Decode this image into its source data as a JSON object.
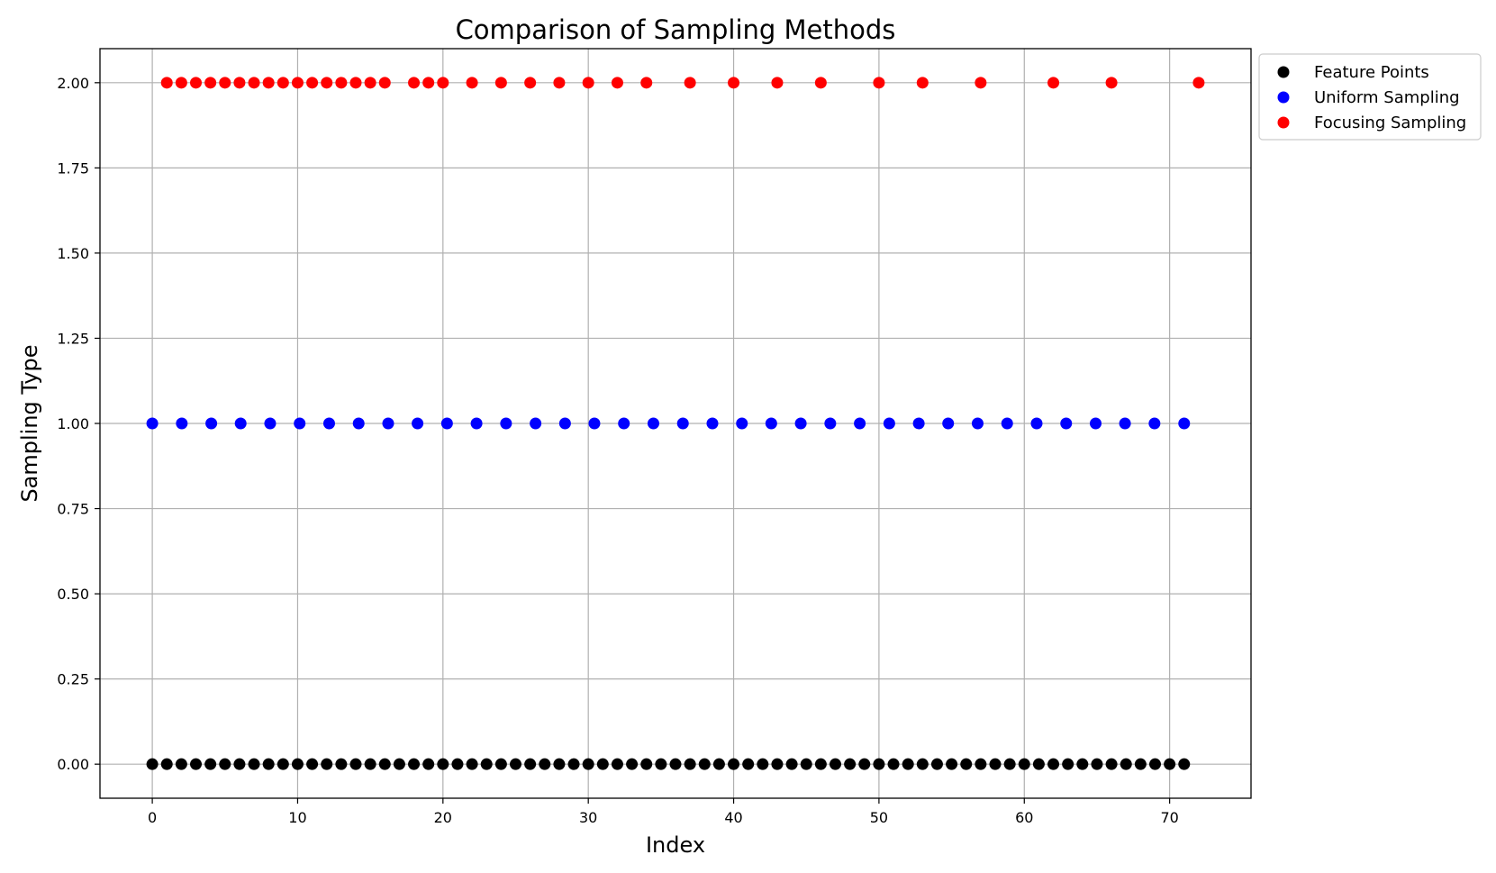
{
  "chart_data": {
    "type": "scatter",
    "title": "Comparison of Sampling Methods",
    "xlabel": "Index",
    "ylabel": "Sampling Type",
    "xlim": [
      -3.6,
      75.6
    ],
    "ylim": [
      -0.1,
      2.1
    ],
    "x_ticks": [
      0,
      10,
      20,
      30,
      40,
      50,
      60,
      70
    ],
    "y_ticks": [
      0,
      0.25,
      0.5,
      0.75,
      1.0,
      1.25,
      1.5,
      1.75,
      2.0
    ],
    "y_tick_labels": [
      "0.00",
      "0.25",
      "0.50",
      "0.75",
      "1.00",
      "1.25",
      "1.50",
      "1.75",
      "2.00"
    ],
    "grid": true,
    "legend_position": "outside-top-right",
    "series": [
      {
        "name": "Feature Points",
        "color": "#000000",
        "y": 0,
        "x": [
          0,
          1,
          2,
          3,
          4,
          5,
          6,
          7,
          8,
          9,
          10,
          11,
          12,
          13,
          14,
          15,
          16,
          17,
          18,
          19,
          20,
          21,
          22,
          23,
          24,
          25,
          26,
          27,
          28,
          29,
          30,
          31,
          32,
          33,
          34,
          35,
          36,
          37,
          38,
          39,
          40,
          41,
          42,
          43,
          44,
          45,
          46,
          47,
          48,
          49,
          50,
          51,
          52,
          53,
          54,
          55,
          56,
          57,
          58,
          59,
          60,
          61,
          62,
          63,
          64,
          65,
          66,
          67,
          68,
          69,
          70,
          71
        ]
      },
      {
        "name": "Uniform Sampling",
        "color": "#0000ff",
        "y": 1,
        "x": [
          0,
          2.03,
          4.06,
          6.08,
          8.11,
          10.14,
          12.17,
          14.2,
          16.23,
          18.25,
          20.28,
          22.31,
          24.34,
          26.37,
          28.4,
          30.42,
          32.45,
          34.48,
          36.51,
          38.54,
          40.57,
          42.59,
          44.62,
          46.65,
          48.68,
          50.71,
          52.74,
          54.76,
          56.79,
          58.82,
          60.85,
          62.88,
          64.91,
          66.93,
          68.96,
          71
        ]
      },
      {
        "name": "Focusing Sampling",
        "color": "#ff0000",
        "y": 2,
        "x": [
          1,
          2,
          3,
          4,
          5,
          6,
          7,
          8,
          9,
          10,
          11,
          12,
          13,
          14,
          15,
          16,
          18,
          19,
          20,
          22,
          24,
          26,
          28,
          30,
          32,
          34,
          37,
          40,
          43,
          46,
          50,
          53,
          57,
          62,
          66,
          72
        ]
      }
    ]
  }
}
